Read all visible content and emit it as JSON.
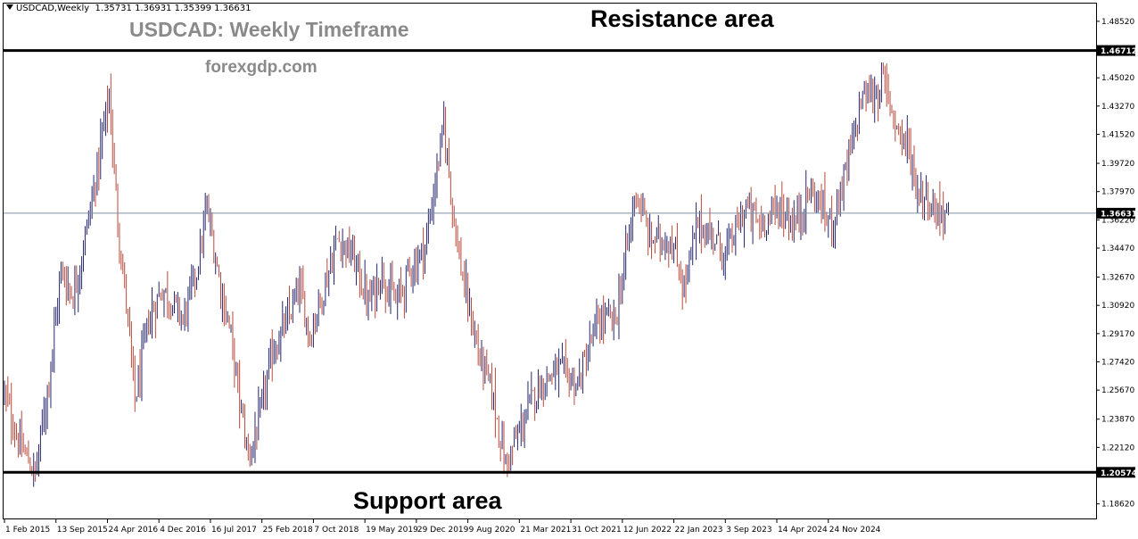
{
  "symbol_info": {
    "symbol": "USDCAD,Weekly",
    "ohlc": "1.35731 1.36931 1.35399 1.36631"
  },
  "title": "USDCAD: Weekly Timeframe",
  "watermark": "forexgdp.com",
  "annotations": {
    "resistance": "Resistance area",
    "support": "Support area"
  },
  "colors": {
    "bull_bar": "#26266e",
    "bear_bar": "#b84a3c",
    "level_line": "#000000",
    "current_price_line": "#7f8fa1",
    "current_price_tag": "#000000"
  },
  "chart_data": {
    "type": "ohlc",
    "title": "USDCAD: Weekly Timeframe",
    "ylim": [
      1.1766,
      1.4962
    ],
    "y_ticks": [
      "1.48520",
      "1.45020",
      "1.43270",
      "1.41520",
      "1.39720",
      "1.37970",
      "1.36220",
      "1.34470",
      "1.32670",
      "1.30920",
      "1.29170",
      "1.27420",
      "1.25670",
      "1.23870",
      "1.22120",
      "1.18620"
    ],
    "x_ticks": [
      "1 Feb 2015",
      "13 Sep 2015",
      "24 Apr 2016",
      "4 Dec 2016",
      "16 Jul 2017",
      "25 Feb 2018",
      "7 Oct 2018",
      "19 May 2019",
      "29 Dec 2019",
      "9 Aug 2020",
      "21 Mar 2021",
      "31 Oct 2021",
      "12 Jun 2022",
      "22 Jan 2023",
      "3 Sep 2023",
      "14 Apr 2024",
      "24 Nov 2024"
    ],
    "levels": [
      {
        "label": "1.46712",
        "value": 1.46712
      },
      {
        "label": "1.20574",
        "value": 1.20574
      }
    ],
    "current_price": {
      "label": "1.36631",
      "value": 1.36631
    },
    "grid": false,
    "series_anchors": {
      "week_index": [
        0,
        8,
        18,
        26,
        33,
        40,
        45,
        52,
        57,
        61,
        66,
        72,
        76,
        84,
        92,
        104,
        112,
        118,
        126,
        132,
        137,
        142,
        148,
        156,
        165,
        172,
        178,
        186,
        194,
        203,
        212,
        220,
        228,
        236,
        245,
        256,
        264,
        268,
        276,
        284,
        292,
        305,
        312,
        322,
        334,
        346,
        356,
        368,
        376,
        388,
        396,
        404,
        414,
        420,
        432,
        440,
        452,
        460,
        470,
        482,
        492,
        500,
        508,
        512,
        520,
        526,
        532,
        538,
        540,
        550
      ],
      "close": [
        1.255,
        1.225,
        1.205,
        1.265,
        1.33,
        1.315,
        1.34,
        1.38,
        1.415,
        1.44,
        1.36,
        1.3,
        1.25,
        1.3,
        1.32,
        1.3,
        1.33,
        1.37,
        1.32,
        1.29,
        1.25,
        1.215,
        1.235,
        1.28,
        1.3,
        1.32,
        1.29,
        1.32,
        1.35,
        1.34,
        1.31,
        1.33,
        1.31,
        1.33,
        1.345,
        1.42,
        1.345,
        1.32,
        1.28,
        1.255,
        1.21,
        1.245,
        1.26,
        1.27,
        1.26,
        1.3,
        1.3,
        1.38,
        1.35,
        1.35,
        1.32,
        1.36,
        1.35,
        1.34,
        1.37,
        1.36,
        1.37,
        1.36,
        1.38,
        1.36,
        1.4,
        1.44,
        1.44,
        1.45,
        1.42,
        1.41,
        1.38,
        1.375,
        1.37,
        1.366
      ]
    }
  }
}
